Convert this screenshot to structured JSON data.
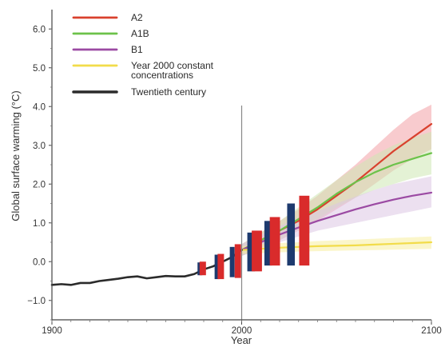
{
  "chart_data": {
    "type": "line",
    "title": "",
    "xlabel": "Year",
    "ylabel": "Global surface warming (°C)",
    "xlim": [
      1900,
      2100
    ],
    "ylim": [
      -1.5,
      6.5
    ],
    "x_ticks": [
      "1900",
      "2000",
      "2100"
    ],
    "y_ticks": [
      "6.0",
      "5.0",
      "4.0",
      "3.0",
      "2.0",
      "1.0",
      "0.0",
      "−1.0"
    ],
    "grid": false,
    "legend_position": "top-left",
    "reference_line_x": 2000,
    "series": [
      {
        "name": "A2",
        "color": "#d9412e",
        "band_color": "#f2a0a6",
        "x": [
          2000,
          2010,
          2020,
          2030,
          2040,
          2050,
          2060,
          2070,
          2080,
          2090,
          2100
        ],
        "y": [
          0.3,
          0.55,
          0.8,
          1.05,
          1.35,
          1.7,
          2.05,
          2.45,
          2.85,
          3.2,
          3.55
        ],
        "lower": [
          0.15,
          0.35,
          0.55,
          0.8,
          1.05,
          1.35,
          1.65,
          2.0,
          2.35,
          2.65,
          2.9
        ],
        "upper": [
          0.45,
          0.75,
          1.05,
          1.35,
          1.7,
          2.1,
          2.5,
          2.95,
          3.4,
          3.8,
          4.05
        ]
      },
      {
        "name": "A1B",
        "color": "#6cc24a",
        "band_color": "#cde8b3",
        "x": [
          2000,
          2010,
          2020,
          2030,
          2040,
          2050,
          2060,
          2070,
          2080,
          2090,
          2100
        ],
        "y": [
          0.3,
          0.55,
          0.8,
          1.1,
          1.4,
          1.75,
          2.05,
          2.3,
          2.5,
          2.65,
          2.8
        ],
        "lower": [
          0.15,
          0.35,
          0.55,
          0.85,
          1.1,
          1.4,
          1.65,
          1.85,
          2.0,
          2.15,
          2.25
        ],
        "upper": [
          0.45,
          0.75,
          1.05,
          1.4,
          1.75,
          2.1,
          2.45,
          2.75,
          3.0,
          3.2,
          3.35
        ]
      },
      {
        "name": "B1",
        "color": "#9b4aa3",
        "band_color": "#dcc6e4",
        "x": [
          2000,
          2010,
          2020,
          2030,
          2040,
          2050,
          2060,
          2070,
          2080,
          2090,
          2100
        ],
        "y": [
          0.3,
          0.5,
          0.7,
          0.88,
          1.05,
          1.2,
          1.35,
          1.48,
          1.6,
          1.7,
          1.78
        ],
        "lower": [
          0.15,
          0.3,
          0.5,
          0.65,
          0.8,
          0.9,
          1.0,
          1.1,
          1.2,
          1.3,
          1.4
        ],
        "upper": [
          0.45,
          0.7,
          0.92,
          1.12,
          1.3,
          1.5,
          1.68,
          1.85,
          2.0,
          2.1,
          2.2
        ]
      },
      {
        "name": "Year 2000 constant concentrations",
        "color": "#f2dc4a",
        "band_color": "#f8ee9e",
        "x": [
          2000,
          2010,
          2020,
          2030,
          2040,
          2050,
          2060,
          2070,
          2080,
          2090,
          2100
        ],
        "y": [
          0.3,
          0.33,
          0.36,
          0.38,
          0.4,
          0.41,
          0.42,
          0.44,
          0.46,
          0.48,
          0.5
        ],
        "lower": [
          0.2,
          0.22,
          0.24,
          0.26,
          0.27,
          0.28,
          0.29,
          0.3,
          0.31,
          0.32,
          0.33
        ],
        "upper": [
          0.4,
          0.44,
          0.48,
          0.5,
          0.53,
          0.55,
          0.57,
          0.59,
          0.61,
          0.63,
          0.65
        ]
      },
      {
        "name": "Twentieth century",
        "color": "#2b2b2b",
        "x": [
          1900,
          1905,
          1910,
          1915,
          1920,
          1925,
          1930,
          1935,
          1940,
          1945,
          1950,
          1955,
          1960,
          1965,
          1970,
          1975,
          1980,
          1985,
          1990,
          1995,
          2000
        ],
        "y": [
          -0.6,
          -0.58,
          -0.6,
          -0.55,
          -0.55,
          -0.5,
          -0.47,
          -0.44,
          -0.4,
          -0.38,
          -0.43,
          -0.4,
          -0.37,
          -0.38,
          -0.38,
          -0.32,
          -0.2,
          -0.12,
          0.0,
          0.12,
          0.3
        ]
      }
    ],
    "range_bars": [
      {
        "x": 1978,
        "kind": "observed",
        "low": -0.35,
        "high": -0.02
      },
      {
        "x": 1979.5,
        "kind": "model",
        "low": -0.35,
        "high": 0.0
      },
      {
        "x": 1987,
        "kind": "observed",
        "low": -0.45,
        "high": 0.18
      },
      {
        "x": 1989,
        "kind": "model",
        "low": -0.45,
        "high": 0.2
      },
      {
        "x": 1995,
        "kind": "observed",
        "low": -0.4,
        "high": 0.38
      },
      {
        "x": 1998,
        "kind": "model",
        "low": -0.42,
        "high": 0.45
      },
      {
        "x": 2005,
        "kind": "observed",
        "low": -0.25,
        "high": 0.75
      },
      {
        "x": 2008,
        "kind": "model",
        "low": -0.25,
        "high": 0.8
      },
      {
        "x": 2014,
        "kind": "observed",
        "low": -0.1,
        "high": 1.05
      },
      {
        "x": 2017.5,
        "kind": "model",
        "low": -0.1,
        "high": 1.15
      },
      {
        "x": 2026,
        "kind": "observed",
        "low": -0.1,
        "high": 1.5
      },
      {
        "x": 2033,
        "kind": "model",
        "low": -0.1,
        "high": 1.7
      }
    ],
    "range_bar_colors": {
      "observed": "#1d3a6e",
      "model": "#d92b2b"
    }
  }
}
